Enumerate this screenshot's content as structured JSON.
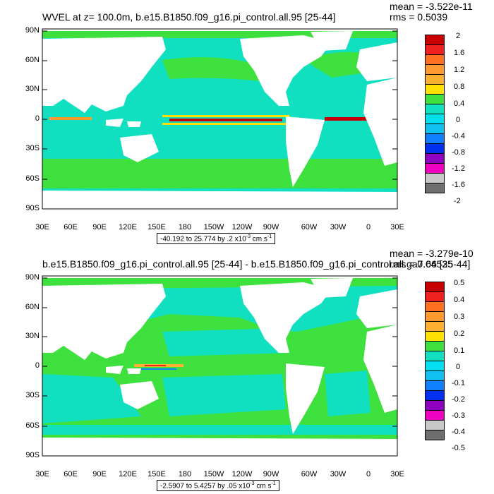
{
  "panels": [
    {
      "title": "WVEL at z= 100.0m, b.e15.B1850.f09_g16.pi_control.all.95 [25-44]",
      "mean": "mean = -3.522e-11",
      "rms": "rms = 0.5039",
      "range_prefix": "-40.192 to 25.774 by .2 x10",
      "range_exp": "-3",
      "range_suffix": " cm s",
      "range_suffix_exp": "-1",
      "colorbar_labels": [
        "2",
        "1.6",
        "1.2",
        "0.8",
        "0.4",
        "0",
        "-0.4",
        "-0.8",
        "-1.2",
        "-1.6",
        "-2"
      ],
      "colors": [
        "#c80000",
        "#ee2020",
        "#ff7020",
        "#ff9a30",
        "#ffb030",
        "#ffe000",
        "#3ee03e",
        "#10e0c0",
        "#00e0f0",
        "#10c0f0",
        "#1080ff",
        "#0030f0",
        "#9000c0",
        "#f000c0",
        "#c8c8c8",
        "#6e6e6e"
      ],
      "ocean_color": "#10e0c0"
    },
    {
      "title": "b.e15.B1850.f09_g16.pi_control.all.95 [25-44] - b.e15.B1850.f09_g16.pi_control.all.ga7.66 [25-44]",
      "mean": "mean = -3.279e-10",
      "rms": "rms = 0.04535",
      "range_prefix": "-2.5907 to 5.4257 by .05 x10",
      "range_exp": "-3",
      "range_suffix": " cm s",
      "range_suffix_exp": "-1",
      "colorbar_labels": [
        "0.5",
        "0.4",
        "0.3",
        "0.2",
        "0.1",
        "0",
        "-0.1",
        "-0.2",
        "-0.3",
        "-0.4",
        "-0.5"
      ],
      "colors": [
        "#c80000",
        "#ee2020",
        "#ff7020",
        "#ff9a30",
        "#ffb030",
        "#ffe000",
        "#3ee03e",
        "#10e0c0",
        "#00e0f0",
        "#10c0f0",
        "#1080ff",
        "#0030f0",
        "#9000c0",
        "#f000c0",
        "#c8c8c8",
        "#6e6e6e"
      ],
      "ocean_color": "#10e0c0"
    }
  ],
  "lat_labels": [
    "90N",
    "60N",
    "30N",
    "0",
    "30S",
    "60S",
    "90S"
  ],
  "lon_labels": [
    "30E",
    "60E",
    "90E",
    "120E",
    "150E",
    "180",
    "150W",
    "120W",
    "90W",
    "60W",
    "30W",
    "0",
    "30E"
  ]
}
